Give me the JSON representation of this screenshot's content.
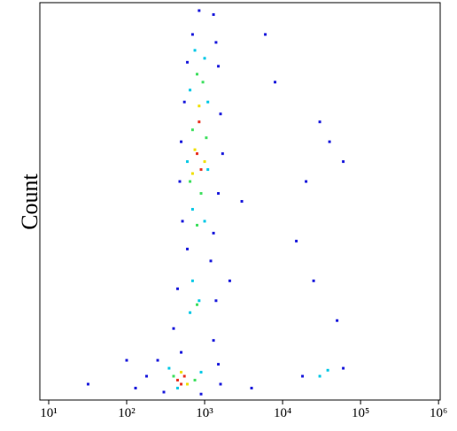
{
  "chart_data": {
    "type": "scatter",
    "y_label": "Count",
    "xscale": "log",
    "xlim": [
      7.7,
      1050000
    ],
    "ylim": [
      0,
      100
    ],
    "xticks": [
      {
        "value": 10,
        "label": "10¹"
      },
      {
        "value": 100,
        "label": "10²"
      },
      {
        "value": 1000,
        "label": "10³"
      },
      {
        "value": 10000,
        "label": "10⁴"
      },
      {
        "value": 100000,
        "label": "10⁵"
      },
      {
        "value": 1000000,
        "label": "10⁶"
      }
    ],
    "series": [
      {
        "color": "#1a1adc",
        "x": [
          850,
          1300,
          700,
          1400,
          600,
          1500,
          550,
          1600,
          500,
          1700,
          480,
          1500,
          520,
          1300,
          600,
          1200,
          450,
          1400,
          400,
          1300,
          500,
          250,
          1500,
          180,
          1600,
          300,
          900,
          130,
          32,
          6000,
          8000,
          30000,
          40000,
          20000,
          60000,
          15000,
          25000,
          50000,
          18000,
          60000,
          4000,
          100,
          2100,
          3000
        ],
        "y": [
          98,
          97,
          92,
          90,
          85,
          84,
          75,
          72,
          65,
          62,
          55,
          52,
          45,
          42,
          38,
          35,
          28,
          25,
          18,
          15,
          12,
          10,
          9,
          6,
          4,
          2,
          1.5,
          3,
          4,
          92,
          80,
          70,
          65,
          55,
          60,
          40,
          30,
          20,
          6,
          8,
          3,
          10,
          30,
          50
        ]
      },
      {
        "color": "#00c8e6",
        "x": [
          750,
          1000,
          650,
          1100,
          600,
          1100,
          700,
          1000,
          700,
          850,
          650,
          350,
          900,
          450,
          30000,
          38000
        ],
        "y": [
          88,
          86,
          78,
          75,
          60,
          58,
          48,
          45,
          30,
          25,
          22,
          8,
          7,
          3,
          6,
          7.5
        ]
      },
      {
        "color": "#40e060",
        "x": [
          800,
          950,
          700,
          1050,
          650,
          900,
          800,
          800,
          400,
          750
        ],
        "y": [
          82,
          80,
          68,
          66,
          55,
          52,
          44,
          24,
          6,
          5
        ]
      },
      {
        "color": "#f0e000",
        "x": [
          850,
          750,
          1000,
          700,
          500,
          600
        ],
        "y": [
          74,
          63,
          60,
          57,
          7,
          4
        ]
      },
      {
        "color": "#e83020",
        "x": [
          850,
          800,
          900,
          450,
          550,
          500
        ],
        "y": [
          70,
          62,
          58,
          5,
          6,
          4
        ]
      }
    ]
  }
}
